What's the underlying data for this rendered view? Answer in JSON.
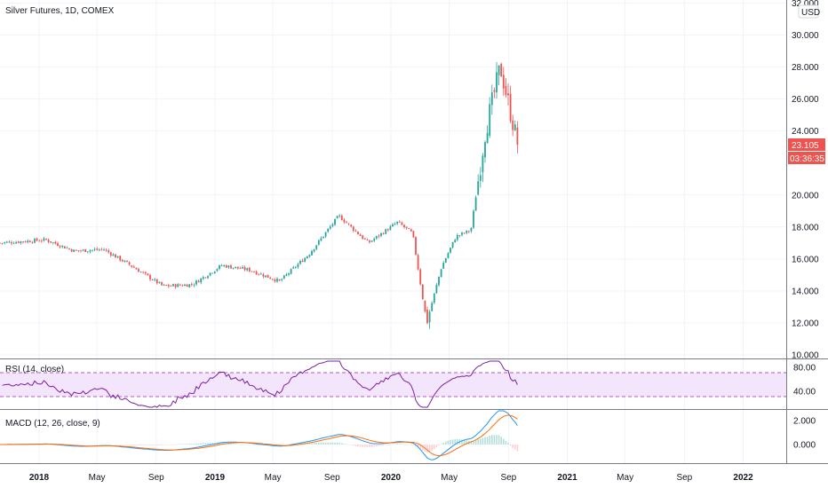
{
  "header": {
    "symbol_title": "Silver Futures, 1D, COMEX",
    "currency": "USD"
  },
  "price_badge": {
    "last_price": "23.105",
    "countdown": "03:36:35",
    "color": "#ef5350"
  },
  "rsi_panel": {
    "title": "RSI (14, close)",
    "ticks": [
      "80.00",
      "40.00"
    ],
    "line_color": "#7b1fa2",
    "band_color": "#f3e5fc"
  },
  "macd_panel": {
    "title": "MACD (12, 26, close, 9)",
    "ticks": [
      "2.000",
      "0.000"
    ],
    "macd_color": "#2196f3",
    "signal_color": "#ff6d00"
  },
  "price_axis": {
    "ticks": [
      "32.000",
      "30.000",
      "28.000",
      "26.000",
      "24.000",
      "20.000",
      "18.000",
      "16.000",
      "14.000",
      "12.000",
      "10.000"
    ]
  },
  "time_axis": {
    "labels": [
      "2018",
      "May",
      "Sep",
      "2019",
      "May",
      "Sep",
      "2020",
      "May",
      "Sep",
      "2021",
      "May",
      "Sep",
      "2022"
    ]
  },
  "colors": {
    "up": "#26a69a",
    "down": "#ef5350",
    "grid": "#f0f3fa",
    "border": "#787b86"
  },
  "chart_data": {
    "type": "candlestick",
    "title": "Silver Futures, 1D, COMEX",
    "ylim": [
      10,
      32
    ],
    "x": [
      "2017-10",
      "2018-01",
      "2018-03",
      "2018-05",
      "2018-07",
      "2018-09",
      "2018-11",
      "2019-01",
      "2019-03",
      "2019-05",
      "2019-07",
      "2019-09",
      "2019-11",
      "2020-01",
      "2020-02",
      "2020-03",
      "2020-04",
      "2020-05",
      "2020-06",
      "2020-07",
      "2020-08",
      "2020-09"
    ],
    "close": [
      17.0,
      17.2,
      16.5,
      16.6,
      15.5,
      14.3,
      14.4,
      15.6,
      15.3,
      14.6,
      16.3,
      18.7,
      17.0,
      18.3,
      17.6,
      12.0,
      15.5,
      17.4,
      17.8,
      24.0,
      28.0,
      23.105
    ]
  }
}
